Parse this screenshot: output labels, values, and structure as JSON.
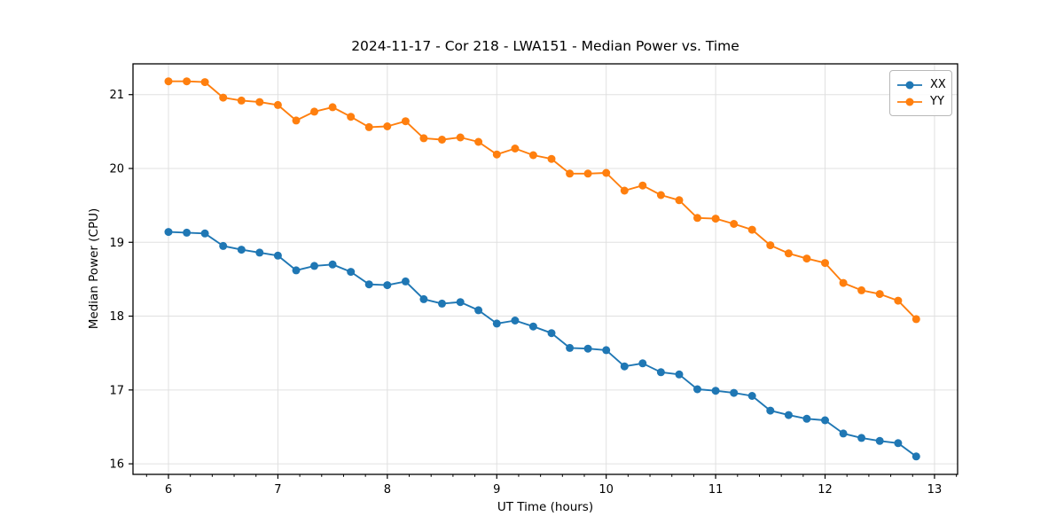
{
  "chart_data": {
    "type": "line",
    "title": "2024-11-17 - Cor 218 - LWA151 - Median Power vs. Time",
    "xlabel": "UT Time (hours)",
    "ylabel": "Median Power (CPU)",
    "xlim": [
      5.676,
      13.211
    ],
    "ylim": [
      15.857,
      21.417
    ],
    "xticks": [
      6,
      7,
      8,
      9,
      10,
      11,
      12,
      13
    ],
    "yticks": [
      16,
      17,
      18,
      19,
      20,
      21
    ],
    "x_minor_tick_step": 0.2,
    "grid": true,
    "legend_position": "upper right",
    "marker": "circle",
    "x": [
      6.0,
      6.167,
      6.333,
      6.5,
      6.667,
      6.833,
      7.0,
      7.167,
      7.333,
      7.5,
      7.667,
      7.833,
      8.0,
      8.167,
      8.333,
      8.5,
      8.667,
      8.833,
      9.0,
      9.167,
      9.333,
      9.5,
      9.667,
      9.833,
      10.0,
      10.167,
      10.333,
      10.5,
      10.667,
      10.833,
      11.0,
      11.167,
      11.333,
      11.5,
      11.667,
      11.833,
      12.0,
      12.167,
      12.333,
      12.5,
      12.667,
      12.833
    ],
    "series": [
      {
        "name": "XX",
        "color": "#1f77b4",
        "values": [
          19.14,
          19.13,
          19.12,
          18.95,
          18.9,
          18.86,
          18.82,
          18.62,
          18.68,
          18.7,
          18.6,
          18.43,
          18.42,
          18.47,
          18.23,
          18.17,
          18.19,
          18.08,
          17.9,
          17.94,
          17.86,
          17.77,
          17.57,
          17.56,
          17.54,
          17.32,
          17.36,
          17.24,
          17.21,
          17.01,
          16.99,
          16.96,
          16.92,
          16.72,
          16.66,
          16.61,
          16.59,
          16.41,
          16.35,
          16.31,
          16.28,
          16.1
        ]
      },
      {
        "name": "YY",
        "color": "#ff7f0e",
        "values": [
          21.18,
          21.18,
          21.17,
          20.96,
          20.92,
          20.9,
          20.86,
          20.65,
          20.77,
          20.83,
          20.7,
          20.56,
          20.57,
          20.64,
          20.41,
          20.39,
          20.42,
          20.36,
          20.19,
          20.27,
          20.18,
          20.13,
          19.93,
          19.93,
          19.94,
          19.7,
          19.77,
          19.64,
          19.57,
          19.33,
          19.32,
          19.25,
          19.17,
          18.96,
          18.85,
          18.78,
          18.72,
          18.45,
          18.35,
          18.3,
          18.21,
          17.96
        ]
      }
    ],
    "colors": {
      "background": "#ffffff",
      "grid": "#e0e0e0",
      "axis": "#000000",
      "text": "#000000"
    }
  }
}
